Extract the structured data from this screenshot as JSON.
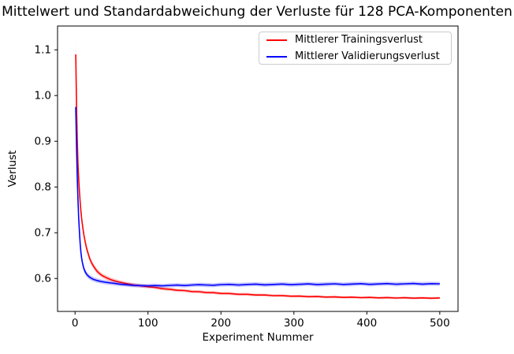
{
  "chart_data": {
    "type": "line",
    "title": "Mittelwert und Standardabweichung der Verluste für 128 PCA-Komponenten",
    "xlabel": "Experiment Nummer",
    "ylabel": "Verlust",
    "xlim": [
      -24,
      525
    ],
    "ylim": [
      0.528,
      1.152
    ],
    "xticks": [
      0,
      100,
      200,
      300,
      400,
      500
    ],
    "yticks": [
      0.6,
      0.7,
      0.8,
      0.9,
      1.0,
      1.1
    ],
    "grid": false,
    "legend_position": "upper right",
    "legend_border_color": "#cccccc",
    "x": [
      1,
      2,
      3,
      4,
      5,
      6,
      7,
      8,
      9,
      10,
      12,
      14,
      16,
      18,
      20,
      23,
      26,
      30,
      34,
      38,
      42,
      46,
      50,
      55,
      60,
      65,
      70,
      75,
      80,
      85,
      90,
      95,
      100,
      110,
      120,
      130,
      140,
      150,
      160,
      170,
      180,
      190,
      200,
      212,
      224,
      236,
      248,
      260,
      272,
      284,
      296,
      308,
      320,
      332,
      344,
      356,
      368,
      380,
      392,
      404,
      416,
      428,
      440,
      452,
      464,
      476,
      488,
      500
    ],
    "series": [
      {
        "key": "training-loss",
        "name": "Mittlerer Trainingsverlust",
        "color": "#ff0000",
        "band_alpha": 0.22,
        "mean": [
          1.09,
          0.976,
          0.903,
          0.852,
          0.818,
          0.79,
          0.767,
          0.748,
          0.732,
          0.718,
          0.696,
          0.679,
          0.665,
          0.654,
          0.644,
          0.633,
          0.625,
          0.616,
          0.61,
          0.6055,
          0.6025,
          0.5995,
          0.597,
          0.5945,
          0.5925,
          0.5905,
          0.589,
          0.5875,
          0.586,
          0.585,
          0.584,
          0.583,
          0.582,
          0.5804,
          0.5776,
          0.5765,
          0.5742,
          0.5736,
          0.5715,
          0.5711,
          0.5692,
          0.569,
          0.5673,
          0.5672,
          0.5654,
          0.5654,
          0.5638,
          0.5639,
          0.5624,
          0.5626,
          0.5612,
          0.5615,
          0.5602,
          0.5606,
          0.5594,
          0.5598,
          0.5587,
          0.5592,
          0.5581,
          0.5587,
          0.5577,
          0.5583,
          0.5573,
          0.558,
          0.557,
          0.5577,
          0.5568,
          0.5575
        ],
        "std": [
          0.033,
          0.026,
          0.021,
          0.017,
          0.014,
          0.012,
          0.011,
          0.01,
          0.009,
          0.0085,
          0.008,
          0.0075,
          0.007,
          0.0065,
          0.006,
          0.0058,
          0.0056,
          0.0054,
          0.0052,
          0.005,
          0.005,
          0.0048,
          0.0046,
          0.0045,
          0.0044,
          0.0043,
          0.0042,
          0.0041,
          0.004,
          0.004,
          0.0039,
          0.0039,
          0.0038,
          0.0037,
          0.0036,
          0.0036,
          0.0035,
          0.0035,
          0.0034,
          0.0034,
          0.0033,
          0.0033,
          0.0032,
          0.0032,
          0.0031,
          0.0031,
          0.003,
          0.003,
          0.003,
          0.0029,
          0.0029,
          0.0029,
          0.0028,
          0.0028,
          0.0028,
          0.0028,
          0.0027,
          0.0027,
          0.0027,
          0.0027,
          0.0026,
          0.0026,
          0.0026,
          0.0026,
          0.0026,
          0.0025,
          0.0025,
          0.0025
        ]
      },
      {
        "key": "validation-loss",
        "name": "Mittlerer Validierungsverlust",
        "color": "#0000ff",
        "band_alpha": 0.22,
        "mean": [
          0.975,
          0.886,
          0.822,
          0.772,
          0.733,
          0.701,
          0.676,
          0.658,
          0.645,
          0.635,
          0.622,
          0.614,
          0.609,
          0.6055,
          0.6028,
          0.5998,
          0.5976,
          0.5956,
          0.5941,
          0.5928,
          0.5917,
          0.5908,
          0.59,
          0.589,
          0.5878,
          0.587,
          0.5862,
          0.5856,
          0.5851,
          0.5847,
          0.5844,
          0.5842,
          0.5841,
          0.5846,
          0.5838,
          0.5849,
          0.5855,
          0.5846,
          0.5858,
          0.5864,
          0.5857,
          0.5852,
          0.5866,
          0.5871,
          0.5858,
          0.5869,
          0.5876,
          0.5861,
          0.587,
          0.5879,
          0.5864,
          0.5873,
          0.5881,
          0.5867,
          0.5876,
          0.5884,
          0.5869,
          0.5878,
          0.5886,
          0.5871,
          0.588,
          0.5889,
          0.5874,
          0.5883,
          0.5891,
          0.5877,
          0.5886,
          0.5883
        ],
        "std": [
          0.02,
          0.016,
          0.013,
          0.011,
          0.0095,
          0.0085,
          0.008,
          0.0075,
          0.007,
          0.0068,
          0.0064,
          0.006,
          0.0058,
          0.0056,
          0.0054,
          0.0052,
          0.005,
          0.0049,
          0.0048,
          0.0047,
          0.0046,
          0.0046,
          0.0045,
          0.0045,
          0.0044,
          0.0044,
          0.0043,
          0.0043,
          0.0043,
          0.0042,
          0.0042,
          0.0042,
          0.0042,
          0.0044,
          0.0042,
          0.0045,
          0.0043,
          0.0046,
          0.0043,
          0.0044,
          0.0046,
          0.0043,
          0.0045,
          0.0043,
          0.0046,
          0.0044,
          0.0042,
          0.0046,
          0.0044,
          0.0043,
          0.0046,
          0.0044,
          0.0043,
          0.0045,
          0.0047,
          0.0043,
          0.0044,
          0.0046,
          0.0043,
          0.0045,
          0.0044,
          0.0042,
          0.0046,
          0.0044,
          0.0043,
          0.0045,
          0.0044,
          0.0043
        ]
      }
    ]
  }
}
